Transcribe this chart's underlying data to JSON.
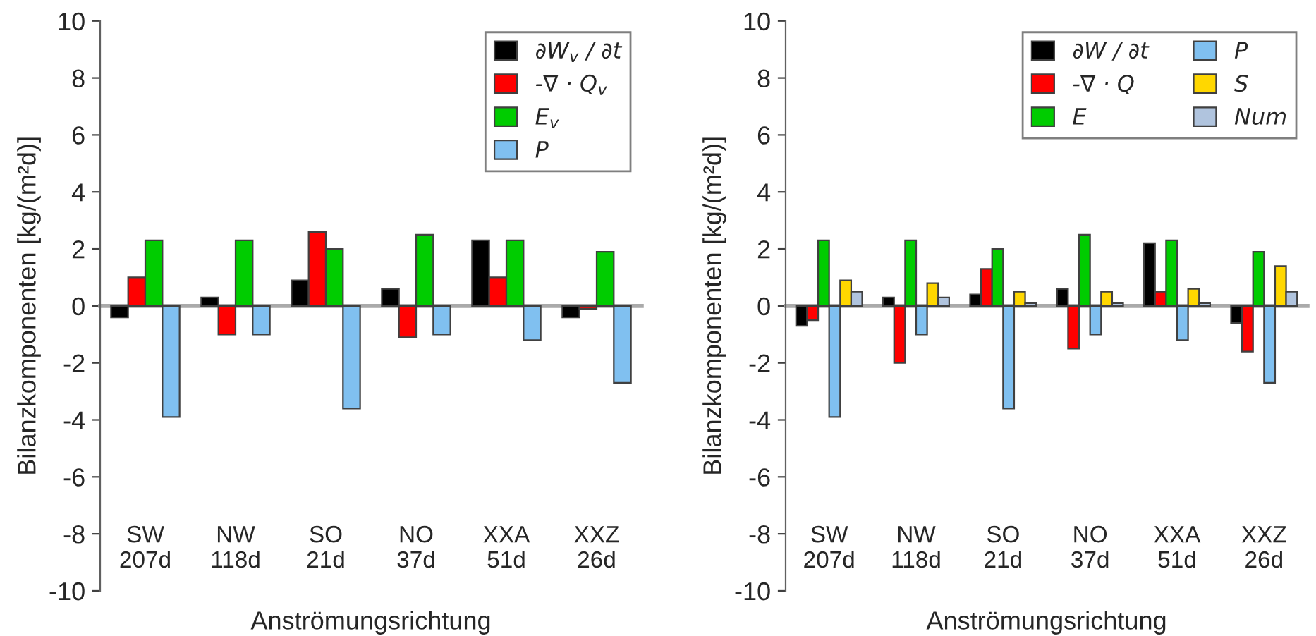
{
  "chart_data": [
    {
      "type": "bar",
      "categories": [
        "SW\n207d",
        "NW\n118d",
        "SO\n21d",
        "NO\n37d",
        "XXA\n51d",
        "XXZ\n26d"
      ],
      "xlabel": "Anströmungsrichtung",
      "ylabel": "Bilanzkomponenten [kg/(m²d)]",
      "ylim": [
        -10,
        10
      ],
      "yticks": [
        -10,
        -8,
        -6,
        -4,
        -2,
        0,
        2,
        4,
        6,
        8,
        10
      ],
      "legend": "top right",
      "series": [
        {
          "name": "∂W$_{v}$ / ∂t",
          "color": "#000000",
          "values": [
            -0.4,
            0.3,
            0.9,
            0.6,
            2.3,
            -0.4
          ]
        },
        {
          "name": "-∇ · Q$_{v}$",
          "color": "#ff0000",
          "values": [
            1.0,
            -1.0,
            2.6,
            -1.1,
            1.0,
            -0.1
          ]
        },
        {
          "name": "E$_{v}$",
          "color": "#00cc00",
          "values": [
            2.3,
            2.3,
            2.0,
            2.5,
            2.3,
            1.9
          ]
        },
        {
          "name": "P",
          "color": "#80c0f0",
          "values": [
            -3.9,
            -1.0,
            -3.6,
            -1.0,
            -1.2,
            -2.7
          ]
        }
      ]
    },
    {
      "type": "bar",
      "categories": [
        "SW\n207d",
        "NW\n118d",
        "SO\n21d",
        "NO\n37d",
        "XXA\n51d",
        "XXZ\n26d"
      ],
      "xlabel": "Anströmungsrichtung",
      "ylabel": "Bilanzkomponenten [kg/(m²d)]",
      "ylim": [
        -10,
        10
      ],
      "yticks": [
        -10,
        -8,
        -6,
        -4,
        -2,
        0,
        2,
        4,
        6,
        8,
        10
      ],
      "legend": "top right",
      "series": [
        {
          "name": "∂W / ∂t",
          "color": "#000000",
          "values": [
            -0.7,
            0.3,
            0.4,
            0.6,
            2.2,
            -0.6
          ]
        },
        {
          "name": "-∇ · Q",
          "color": "#ff0000",
          "values": [
            -0.5,
            -2.0,
            1.3,
            -1.5,
            0.5,
            -1.6
          ]
        },
        {
          "name": "E",
          "color": "#00cc00",
          "values": [
            2.3,
            2.3,
            2.0,
            2.5,
            2.3,
            1.9
          ]
        },
        {
          "name": "P",
          "color": "#80c0f0",
          "values": [
            -3.9,
            -1.0,
            -3.6,
            -1.0,
            -1.2,
            -2.7
          ]
        },
        {
          "name": "S",
          "color": "#ffd700",
          "values": [
            0.9,
            0.8,
            0.5,
            0.5,
            0.6,
            1.4
          ]
        },
        {
          "name": "Num",
          "color": "#b0c4de",
          "values": [
            0.5,
            0.3,
            0.1,
            0.1,
            0.1,
            0.5
          ]
        }
      ]
    }
  ]
}
